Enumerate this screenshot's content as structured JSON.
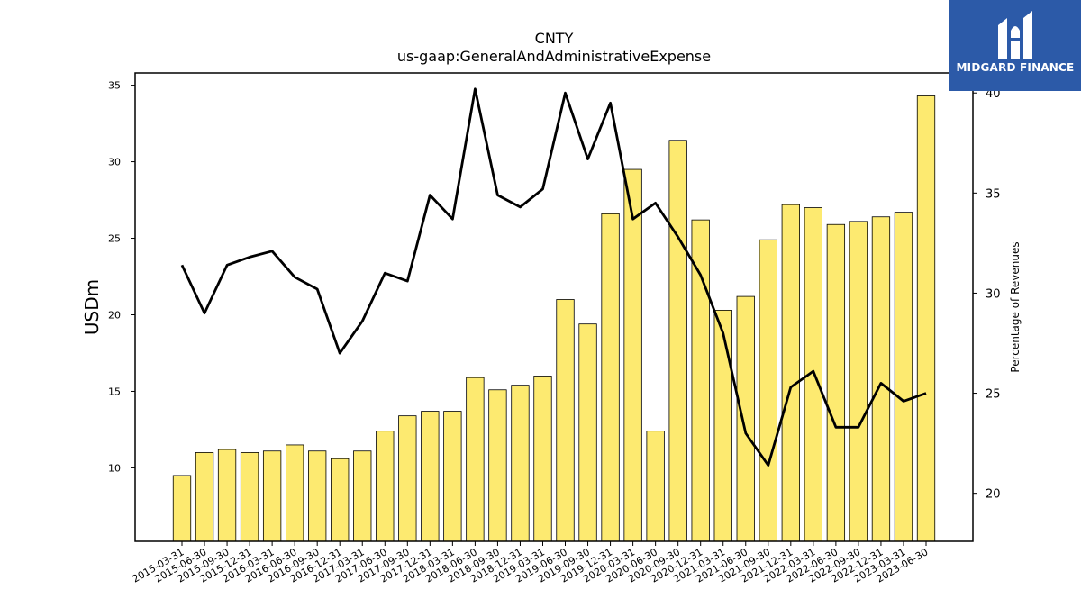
{
  "logo": {
    "text": "MIDGARD FINANCE",
    "icon": "midgard-logo-icon",
    "background": "#2c5aa8"
  },
  "chart_data": {
    "type": "bar",
    "title": "CNTY",
    "subtitle": "us-gaap:GeneralAndAdministrativeExpense",
    "ylabel": "USDm",
    "y2label": "Percentage of Revenues",
    "ylim": [
      5.2,
      35.8
    ],
    "y2lim": [
      17.6,
      41.0
    ],
    "yticks": [
      10,
      15,
      20,
      25,
      30,
      35
    ],
    "y2ticks": [
      20,
      25,
      30,
      35,
      40
    ],
    "grid": false,
    "bar_color": "#fdea70",
    "line_color": "#000000",
    "categories": [
      "2015-03-31",
      "2015-06-30",
      "2015-09-30",
      "2015-12-31",
      "2016-03-31",
      "2016-06-30",
      "2016-09-30",
      "2016-12-31",
      "2017-03-31",
      "2017-06-30",
      "2017-09-30",
      "2017-12-31",
      "2018-03-31",
      "2018-06-30",
      "2018-09-30",
      "2018-12-31",
      "2019-03-31",
      "2019-06-30",
      "2019-09-30",
      "2019-12-31",
      "2020-03-31",
      "2020-06-30",
      "2020-09-30",
      "2020-12-31",
      "2021-03-31",
      "2021-06-30",
      "2021-09-30",
      "2021-12-31",
      "2022-03-31",
      "2022-06-30",
      "2022-09-30",
      "2022-12-31",
      "2023-03-31",
      "2023-06-30"
    ],
    "series": [
      {
        "type": "bar",
        "axis": "left",
        "values": [
          9.5,
          11.0,
          11.2,
          11.0,
          11.1,
          11.5,
          11.1,
          10.6,
          11.1,
          12.4,
          13.4,
          13.7,
          13.7,
          15.9,
          15.1,
          15.4,
          16.0,
          21.0,
          19.4,
          26.6,
          29.5,
          12.4,
          31.4,
          26.2,
          20.3,
          21.2,
          24.9,
          27.2,
          27.0,
          25.9,
          26.1,
          26.4,
          26.7,
          34.3
        ]
      },
      {
        "type": "line",
        "axis": "right",
        "values": [
          31.4,
          29.0,
          31.4,
          31.8,
          32.1,
          30.8,
          30.2,
          27.0,
          28.6,
          31.0,
          30.6,
          34.9,
          33.7,
          40.2,
          34.9,
          34.3,
          35.2,
          40.0,
          36.7,
          39.5,
          33.7,
          34.5,
          32.8,
          30.9,
          28.0,
          23.0,
          21.4,
          25.3,
          26.1,
          23.3,
          23.3,
          25.5,
          24.6,
          25.0
        ]
      }
    ]
  }
}
